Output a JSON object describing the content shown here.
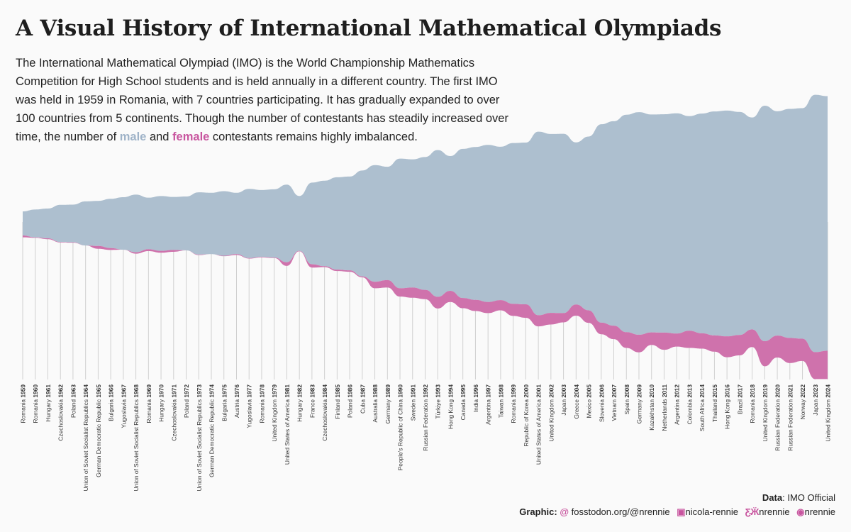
{
  "title": "A Visual History of International Mathematical Olympiads",
  "subtitle": {
    "part1": "The International Mathematical Olympiad (IMO) is the World Championship Mathematics Competition for High School students and is held annually in a different country. The first IMO was held in 1959 in Romania, with 7 countries participating. It has gradually expanded to over 100 countries from 5 continents. Though the number of contestants has steadily increased over time, the number of ",
    "male_word": "male",
    "and_word": " and ",
    "female_word": "female",
    "part2": " contestants remains highly imbalanced."
  },
  "colors": {
    "male": "#adbfcf",
    "female": "#cf72ac",
    "female_accent": "#c8559f",
    "male_accent": "#9fb3c8",
    "gridline": "#d0d0d0",
    "background": "#fafafa"
  },
  "chart_data": {
    "type": "area",
    "title": "A Visual History of International Mathematical Olympiads",
    "xlabel": "",
    "ylabel": "",
    "grid": "vertical lines per edition",
    "legend": "inline in subtitle text",
    "layout": "streamgraph centered on fixed baseline",
    "categories": [
      "Romania 1959",
      "Romania 1960",
      "Hungary 1961",
      "Czechoslovakia 1962",
      "Poland 1963",
      "Union of Soviet Socialist Republics 1964",
      "German Democratic Republic 1965",
      "Bulgaria 1966",
      "Yugoslavia 1967",
      "Union of Soviet Socialist Republics 1968",
      "Romania 1969",
      "Hungary 1970",
      "Czechoslovakia 1971",
      "Poland 1972",
      "Union of Soviet Socialist Republics 1973",
      "German Democratic Republic 1974",
      "Bulgaria 1975",
      "Austria 1976",
      "Yugoslavia 1977",
      "Romania 1978",
      "United Kingdom 1979",
      "United States of America 1981",
      "Hungary 1982",
      "France 1983",
      "Czechoslovakia 1984",
      "Finland 1985",
      "Poland 1986",
      "Cuba 1987",
      "Australia 1988",
      "Germany 1989",
      "People's Republic of China 1990",
      "Sweden 1991",
      "Russian Federation 1992",
      "Türkiye 1993",
      "Hong Kong 1994",
      "Canada 1995",
      "India 1996",
      "Argentina 1997",
      "Taiwan 1998",
      "Romania 1999",
      "Republic of Korea 2000",
      "United States of America 2001",
      "United Kingdom 2002",
      "Japan 2003",
      "Greece 2004",
      "Mexico 2005",
      "Slovenia 2006",
      "Vietnam 2007",
      "Spain 2008",
      "Germany 2009",
      "Kazakhstan 2010",
      "Netherlands 2011",
      "Argentina 2012",
      "Colombia 2013",
      "South Africa 2014",
      "Thailand 2015",
      "Hong Kong 2016",
      "Brazil 2017",
      "Romania 2018",
      "United Kingdom 2019",
      "Russian Federation 2020",
      "Russian Federation 2021",
      "Norway 2022",
      "Japan 2023",
      "United Kingdom 2024"
    ],
    "series": [
      {
        "name": "male",
        "values": [
          52,
          60,
          64,
          80,
          81,
          95,
          97,
          106,
          113,
          124,
          111,
          118,
          114,
          116,
          134,
          132,
          139,
          132,
          149,
          144,
          147,
          167,
          118,
          176,
          184,
          199,
          202,
          228,
          251,
          244,
          279,
          276,
          286,
          316,
          290,
          321,
          329,
          338,
          330,
          346,
          348,
          395,
          385,
          386,
          349,
          374,
          427,
          440,
          468,
          479,
          469,
          470,
          474,
          462,
          473,
          482,
          486,
          480,
          456,
          507,
          483,
          493,
          496,
          554,
          548
        ]
      },
      {
        "name": "female",
        "values": [
          4,
          1,
          2,
          1,
          1,
          0,
          6,
          4,
          0,
          3,
          4,
          4,
          4,
          0,
          1,
          0,
          1,
          2,
          1,
          1,
          1,
          8,
          1,
          7,
          2,
          3,
          3,
          2,
          14,
          16,
          18,
          22,
          20,
          25,
          24,
          22,
          24,
          24,
          22,
          26,
          29,
          24,
          25,
          20,
          24,
          27,
          25,
          29,
          34,
          38,
          27,
          37,
          28,
          37,
          33,
          35,
          45,
          44,
          38,
          54,
          47,
          54,
          48,
          58,
          61
        ]
      }
    ]
  },
  "caption": {
    "data_label": "Data",
    "data_value": ": IMO Official",
    "graphic_label": "Graphic",
    "graphic_colon": ":",
    "mastodon_icon": "mastodon-icon",
    "mastodon_text": "fosstodon.org/@nrennie",
    "linkedin_icon": "linkedin-icon",
    "linkedin_text": "nicola-rennie",
    "bluesky_icon": "butterfly-icon",
    "bluesky_text": "nrennie",
    "github_icon": "github-icon",
    "github_text": "nrennie"
  }
}
